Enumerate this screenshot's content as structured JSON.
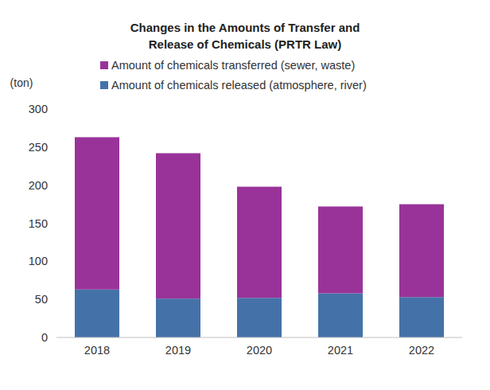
{
  "chart_data": {
    "type": "bar",
    "stacked": true,
    "grid": false,
    "title": [
      "Changes in the Amounts of Transfer and",
      "Release of Chemicals (PRTR Law)"
    ],
    "y_label": "(ton)",
    "categories": [
      "2018",
      "2019",
      "2020",
      "2021",
      "2022"
    ],
    "series": [
      {
        "name": "Amount of chemicals released (atmosphere, river)",
        "color": "#4472a8",
        "values": [
          63,
          51,
          52,
          58,
          53
        ]
      },
      {
        "name": "Amount of chemicals transferred (sewer, waste)",
        "color": "#993399",
        "values": [
          200,
          191,
          146,
          114,
          122
        ]
      }
    ],
    "ylim": [
      0,
      300
    ],
    "yticks": [
      0,
      50,
      100,
      150,
      200,
      250,
      300
    ]
  }
}
